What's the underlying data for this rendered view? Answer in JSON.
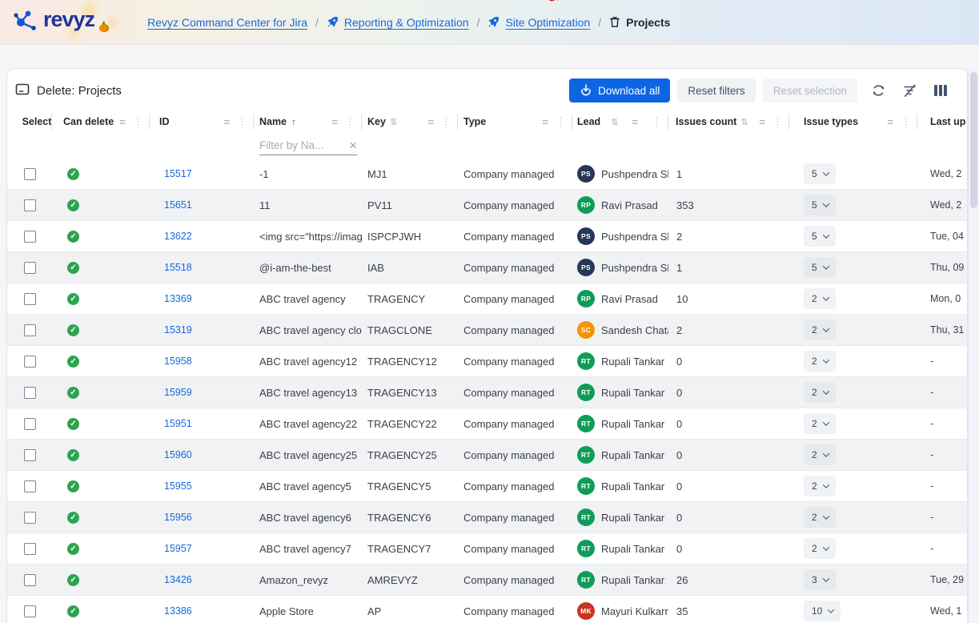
{
  "header": {
    "logo_text": "revyz",
    "breadcrumbs": [
      {
        "label": "Revyz Command Center for Jira",
        "icon": "none",
        "link": true
      },
      {
        "label": "Reporting & Optimization",
        "icon": "rocket",
        "link": true
      },
      {
        "label": "Site Optimization",
        "icon": "rocket",
        "link": true
      },
      {
        "label": "Projects",
        "icon": "trash",
        "link": false
      }
    ]
  },
  "toolbar": {
    "title": "Delete: Projects",
    "download_all_label": "Download all",
    "reset_filters_label": "Reset filters",
    "reset_selection_label": "Reset selection"
  },
  "table": {
    "columns": [
      {
        "key": "select",
        "label": "Select",
        "sort": "none",
        "menu": false
      },
      {
        "key": "can_delete",
        "label": "Can delete",
        "sort": "none",
        "menu": true
      },
      {
        "key": "id",
        "label": "ID",
        "sort": "none",
        "menu": true
      },
      {
        "key": "name",
        "label": "Name",
        "sort": "asc",
        "menu": true
      },
      {
        "key": "key",
        "label": "Key",
        "sort": "sortable",
        "menu": true
      },
      {
        "key": "type",
        "label": "Type",
        "sort": "none",
        "menu": true
      },
      {
        "key": "lead",
        "label": "Lead",
        "sort": "sortable",
        "menu": true
      },
      {
        "key": "issues_count",
        "label": "Issues count",
        "sort": "sortable",
        "menu": true
      },
      {
        "key": "issue_types",
        "label": "Issue types",
        "sort": "none",
        "menu": true
      },
      {
        "key": "last_updated",
        "label": "Last up",
        "sort": "none",
        "menu": false
      }
    ],
    "name_filter": {
      "placeholder": "Filter by Na...",
      "clear": "×"
    },
    "rows": [
      {
        "id": "15517",
        "name": "-1",
        "key": "MJ1",
        "type": "Company managed",
        "lead": "Pushpendra Sha",
        "lead_initials": "PS",
        "lead_color": "#253858",
        "issues_count": "1",
        "issue_types": "5",
        "last_updated": "Wed, 2"
      },
      {
        "id": "15651",
        "name": "11",
        "key": "PV11",
        "type": "Company managed",
        "lead": "Ravi Prasad",
        "lead_initials": "RP",
        "lead_color": "#0e9d58",
        "issues_count": "353",
        "issue_types": "5",
        "last_updated": "Wed, 2"
      },
      {
        "id": "13622",
        "name": "<img src=\"https://images.",
        "key": "ISPCPJWH",
        "type": "Company managed",
        "lead": "Pushpendra Sha",
        "lead_initials": "PS",
        "lead_color": "#253858",
        "issues_count": "2",
        "issue_types": "5",
        "last_updated": "Tue, 04"
      },
      {
        "id": "15518",
        "name": "@i-am-the-best",
        "key": "IAB",
        "type": "Company managed",
        "lead": "Pushpendra Sha",
        "lead_initials": "PS",
        "lead_color": "#253858",
        "issues_count": "1",
        "issue_types": "5",
        "last_updated": "Thu, 09"
      },
      {
        "id": "13369",
        "name": "ABC travel agency",
        "key": "TRAGENCY",
        "type": "Company managed",
        "lead": "Ravi Prasad",
        "lead_initials": "RP",
        "lead_color": "#0e9d58",
        "issues_count": "10",
        "issue_types": "2",
        "last_updated": "Mon, 0"
      },
      {
        "id": "15319",
        "name": "ABC travel agency clone",
        "key": "TRAGCLONE",
        "type": "Company managed",
        "lead": "Sandesh Chatarr",
        "lead_initials": "SC",
        "lead_color": "#f59300",
        "issues_count": "2",
        "issue_types": "2",
        "last_updated": "Thu, 31"
      },
      {
        "id": "15958",
        "name": "ABC travel agency12",
        "key": "TRAGENCY12",
        "type": "Company managed",
        "lead": "Rupali Tankar",
        "lead_initials": "RT",
        "lead_color": "#0e9d58",
        "issues_count": "0",
        "issue_types": "2",
        "last_updated": "-"
      },
      {
        "id": "15959",
        "name": "ABC travel agency13",
        "key": "TRAGENCY13",
        "type": "Company managed",
        "lead": "Rupali Tankar",
        "lead_initials": "RT",
        "lead_color": "#0e9d58",
        "issues_count": "0",
        "issue_types": "2",
        "last_updated": "-"
      },
      {
        "id": "15951",
        "name": "ABC travel agency22",
        "key": "TRAGENCY22",
        "type": "Company managed",
        "lead": "Rupali Tankar",
        "lead_initials": "RT",
        "lead_color": "#0e9d58",
        "issues_count": "0",
        "issue_types": "2",
        "last_updated": "-"
      },
      {
        "id": "15960",
        "name": "ABC travel agency25",
        "key": "TRAGENCY25",
        "type": "Company managed",
        "lead": "Rupali Tankar",
        "lead_initials": "RT",
        "lead_color": "#0e9d58",
        "issues_count": "0",
        "issue_types": "2",
        "last_updated": "-"
      },
      {
        "id": "15955",
        "name": "ABC travel agency5",
        "key": "TRAGENCY5",
        "type": "Company managed",
        "lead": "Rupali Tankar",
        "lead_initials": "RT",
        "lead_color": "#0e9d58",
        "issues_count": "0",
        "issue_types": "2",
        "last_updated": "-"
      },
      {
        "id": "15956",
        "name": "ABC travel agency6",
        "key": "TRAGENCY6",
        "type": "Company managed",
        "lead": "Rupali Tankar",
        "lead_initials": "RT",
        "lead_color": "#0e9d58",
        "issues_count": "0",
        "issue_types": "2",
        "last_updated": "-"
      },
      {
        "id": "15957",
        "name": "ABC travel agency7",
        "key": "TRAGENCY7",
        "type": "Company managed",
        "lead": "Rupali Tankar",
        "lead_initials": "RT",
        "lead_color": "#0e9d58",
        "issues_count": "0",
        "issue_types": "2",
        "last_updated": "-"
      },
      {
        "id": "13426",
        "name": "Amazon_revyz",
        "key": "AMREVYZ",
        "type": "Company managed",
        "lead": "Rupali Tankar",
        "lead_initials": "RT",
        "lead_color": "#0e9d58",
        "issues_count": "26",
        "issue_types": "3",
        "last_updated": "Tue, 29"
      },
      {
        "id": "13386",
        "name": "Apple Store",
        "key": "AP",
        "type": "Company managed",
        "lead": "Mayuri Kulkarni",
        "lead_initials": "MK",
        "lead_color": "#ca3521",
        "issues_count": "35",
        "issue_types": "10",
        "last_updated": "Wed, 1"
      }
    ]
  },
  "colors": {
    "accent_blue": "#0c66e4",
    "link_blue": "#1868db",
    "can_delete_green": "#2da44e"
  }
}
